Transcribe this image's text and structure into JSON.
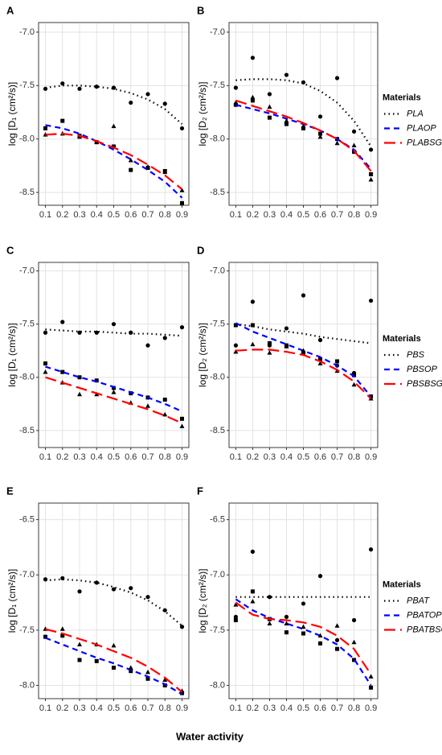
{
  "x_axis_label": "Water activity",
  "chart_data": [
    {
      "type": "scatter",
      "panel_label": "A",
      "ylabel": "log [D₁ (cm²/s)]",
      "x": [
        0.1,
        0.2,
        0.3,
        0.4,
        0.5,
        0.6,
        0.7,
        0.8,
        0.9
      ],
      "xlim": [
        0.06,
        0.94
      ],
      "xticks": [
        0.1,
        0.2,
        0.3,
        0.4,
        0.5,
        0.6,
        0.7,
        0.8,
        0.9
      ],
      "ylim": [
        -8.62,
        -6.91
      ],
      "yticks": [
        {
          "value": -7,
          "label": "-7.0"
        },
        -7.5,
        {
          "value": -8,
          "label": "-8.0"
        },
        -8.5
      ],
      "grid": true,
      "series": [
        {
          "color": "#000000",
          "marker": "circle",
          "line_style": "dotted",
          "values": [
            -7.53,
            -7.48,
            -7.53,
            -7.51,
            -7.52,
            -7.66,
            -7.58,
            -7.67,
            -7.9
          ],
          "fit": [
            -7.52,
            -7.5,
            -7.5,
            -7.51,
            -7.53,
            -7.57,
            -7.63,
            -7.72,
            -7.86
          ]
        },
        {
          "color": "#0000ff",
          "marker": "square",
          "line_style": "dashed",
          "values": [
            -7.9,
            -7.83,
            -7.97,
            -8.03,
            -8.07,
            -8.29,
            -8.27,
            -8.3,
            -8.6
          ],
          "fit": [
            -7.87,
            -7.9,
            -7.95,
            -8.02,
            -8.1,
            -8.19,
            -8.29,
            -8.4,
            -8.55
          ]
        },
        {
          "color": "#ff0000",
          "marker": "triangle",
          "line_style": "longdash",
          "values": [
            -7.96,
            -7.95,
            -7.98,
            -8.03,
            -7.88,
            -8.2,
            -8.26,
            -8.31,
            -8.48
          ],
          "fit": [
            -7.96,
            -7.95,
            -7.97,
            -8.02,
            -8.08,
            -8.15,
            -8.24,
            -8.34,
            -8.47
          ]
        }
      ]
    },
    {
      "type": "scatter",
      "panel_label": "B",
      "ylabel": "log [D₂ (cm²/s)]",
      "x": [
        0.1,
        0.2,
        0.3,
        0.4,
        0.5,
        0.6,
        0.7,
        0.8,
        0.9
      ],
      "xlim": [
        0.06,
        0.94
      ],
      "xticks": [
        0.1,
        0.2,
        0.3,
        0.4,
        0.5,
        0.6,
        0.7,
        0.8,
        0.9
      ],
      "ylim": [
        -8.62,
        -6.91
      ],
      "yticks": [
        {
          "value": -7,
          "label": "-7.0"
        },
        -7.5,
        {
          "value": -8,
          "label": "-8.0"
        },
        -8.5
      ],
      "grid": true,
      "legend_title": "Materials",
      "series": [
        {
          "name": "PLA",
          "color": "#000000",
          "marker": "circle",
          "line_style": "dotted",
          "values": [
            -7.52,
            -7.24,
            -7.58,
            -7.4,
            -7.47,
            -7.79,
            -7.43,
            -7.93,
            -8.1
          ],
          "fit": [
            -7.45,
            -7.44,
            -7.44,
            -7.45,
            -7.48,
            -7.55,
            -7.66,
            -7.83,
            -8.07
          ]
        },
        {
          "name": "PLAOP",
          "color": "#0000ff",
          "marker": "square",
          "line_style": "dashed",
          "values": [
            -7.68,
            -7.64,
            -7.8,
            -7.86,
            -7.9,
            -7.95,
            -8.0,
            -8.12,
            -8.33
          ],
          "fit": [
            -7.68,
            -7.72,
            -7.76,
            -7.81,
            -7.86,
            -7.92,
            -8.0,
            -8.1,
            -8.28
          ]
        },
        {
          "name": "PLABSG",
          "color": "#ff0000",
          "marker": "triangle",
          "line_style": "longdash",
          "values": [
            -7.66,
            -7.61,
            -7.7,
            -7.83,
            -7.88,
            -7.98,
            -8.04,
            -8.06,
            -8.38
          ],
          "fit": [
            -7.64,
            -7.69,
            -7.74,
            -7.79,
            -7.85,
            -7.92,
            -8.0,
            -8.11,
            -8.3
          ]
        }
      ]
    },
    {
      "type": "scatter",
      "panel_label": "C",
      "ylabel": "log [D₁ (cm²/s)]",
      "x": [
        0.1,
        0.2,
        0.3,
        0.4,
        0.5,
        0.6,
        0.7,
        0.8,
        0.9
      ],
      "xlim": [
        0.06,
        0.94
      ],
      "xticks": [
        0.1,
        0.2,
        0.3,
        0.4,
        0.5,
        0.6,
        0.7,
        0.8,
        0.9
      ],
      "ylim": [
        -8.66,
        -6.92
      ],
      "yticks": [
        {
          "value": -7,
          "label": "-7.0"
        },
        -7.5,
        {
          "value": -8,
          "label": "-8.0"
        },
        -8.5
      ],
      "grid": true,
      "series": [
        {
          "color": "#000000",
          "marker": "circle",
          "line_style": "dotted",
          "values": [
            -7.58,
            -7.48,
            -7.58,
            -7.58,
            -7.5,
            -7.58,
            -7.7,
            -7.63,
            -7.53
          ],
          "fit": [
            -7.55,
            -7.56,
            -7.57,
            -7.57,
            -7.58,
            -7.59,
            -7.59,
            -7.6,
            -7.61
          ]
        },
        {
          "color": "#0000ff",
          "marker": "square",
          "line_style": "dashed",
          "values": [
            -7.87,
            -7.95,
            -8.0,
            -8.03,
            -8.1,
            -8.15,
            -8.19,
            -8.21,
            -8.39
          ],
          "fit": [
            -7.9,
            -7.95,
            -8.0,
            -8.04,
            -8.09,
            -8.14,
            -8.19,
            -8.25,
            -8.32
          ]
        },
        {
          "color": "#ff0000",
          "marker": "triangle",
          "line_style": "longdash",
          "values": [
            -7.95,
            -8.05,
            -8.16,
            -8.16,
            -8.14,
            -8.24,
            -8.27,
            -8.35,
            -8.46
          ],
          "fit": [
            -8.0,
            -8.05,
            -8.1,
            -8.15,
            -8.2,
            -8.25,
            -8.3,
            -8.36,
            -8.43
          ]
        }
      ]
    },
    {
      "type": "scatter",
      "panel_label": "D",
      "ylabel": "log [D₂ (cm²/s)]",
      "x": [
        0.1,
        0.2,
        0.3,
        0.4,
        0.5,
        0.6,
        0.7,
        0.8,
        0.9
      ],
      "xlim": [
        0.06,
        0.94
      ],
      "xticks": [
        0.1,
        0.2,
        0.3,
        0.4,
        0.5,
        0.6,
        0.7,
        0.8,
        0.9
      ],
      "ylim": [
        -8.66,
        -6.92
      ],
      "yticks": [
        {
          "value": -7,
          "label": "-7.0"
        },
        -7.5,
        {
          "value": -8,
          "label": "-8.0"
        },
        -8.5
      ],
      "grid": true,
      "legend_title": "Materials",
      "series": [
        {
          "name": "PBS",
          "color": "#000000",
          "marker": "circle",
          "line_style": "dotted",
          "values": [
            -7.7,
            -7.29,
            -7.7,
            -7.54,
            -7.23,
            -7.65,
            -7.89,
            -7.96,
            -7.28
          ],
          "fit": [
            -7.5,
            -7.52,
            -7.55,
            -7.57,
            -7.59,
            -7.62,
            -7.64,
            -7.66,
            -7.68
          ]
        },
        {
          "name": "PBSOP",
          "color": "#0000ff",
          "marker": "square",
          "line_style": "dashed",
          "values": [
            -7.51,
            -7.51,
            -7.68,
            -7.7,
            -7.77,
            -7.83,
            -7.85,
            -7.98,
            -8.18
          ],
          "fit": [
            -7.49,
            -7.57,
            -7.63,
            -7.69,
            -7.75,
            -7.81,
            -7.89,
            -7.99,
            -8.18
          ]
        },
        {
          "name": "PBSBSG",
          "color": "#ff0000",
          "marker": "triangle",
          "line_style": "longdash",
          "values": [
            -7.76,
            -7.69,
            -7.77,
            -7.71,
            -7.75,
            -7.87,
            -7.94,
            -8.07,
            -8.2
          ],
          "fit": [
            -7.75,
            -7.74,
            -7.74,
            -7.76,
            -7.79,
            -7.85,
            -7.93,
            -8.04,
            -8.2
          ]
        }
      ]
    },
    {
      "type": "scatter",
      "panel_label": "E",
      "ylabel": "log [D₁ (cm²/s)]",
      "x": [
        0.1,
        0.2,
        0.3,
        0.4,
        0.5,
        0.6,
        0.7,
        0.8,
        0.9
      ],
      "xlim": [
        0.06,
        0.94
      ],
      "xticks": [
        0.1,
        0.2,
        0.3,
        0.4,
        0.5,
        0.6,
        0.7,
        0.8,
        0.9
      ],
      "ylim": [
        -8.12,
        -6.35
      ],
      "yticks": [
        -6.5,
        {
          "value": -7,
          "label": "-7.0"
        },
        -7.5,
        {
          "value": -8,
          "label": "-8.0"
        }
      ],
      "grid": true,
      "series": [
        {
          "color": "#000000",
          "marker": "circle",
          "line_style": "dotted",
          "values": [
            -7.04,
            -7.03,
            -7.15,
            -7.07,
            -7.13,
            -7.12,
            -7.2,
            -7.32,
            -7.47
          ],
          "fit": [
            -7.05,
            -7.04,
            -7.05,
            -7.07,
            -7.11,
            -7.16,
            -7.23,
            -7.33,
            -7.46
          ]
        },
        {
          "color": "#0000ff",
          "marker": "square",
          "line_style": "dashed",
          "values": [
            -7.56,
            -7.55,
            -7.77,
            -7.78,
            -7.84,
            -7.87,
            -7.94,
            -8.0,
            -8.07
          ],
          "fit": [
            -7.57,
            -7.63,
            -7.69,
            -7.75,
            -7.8,
            -7.86,
            -7.92,
            -7.99,
            -8.08
          ]
        },
        {
          "color": "#ff0000",
          "marker": "triangle",
          "line_style": "longdash",
          "values": [
            -7.49,
            -7.49,
            -7.63,
            -7.63,
            -7.64,
            -7.84,
            -7.88,
            -7.95,
            -8.05
          ],
          "fit": [
            -7.49,
            -7.53,
            -7.58,
            -7.63,
            -7.69,
            -7.75,
            -7.83,
            -7.93,
            -8.06
          ]
        }
      ]
    },
    {
      "type": "scatter",
      "panel_label": "F",
      "ylabel": "log [D₂ (cm²/s)]",
      "x": [
        0.1,
        0.2,
        0.3,
        0.4,
        0.5,
        0.6,
        0.7,
        0.8,
        0.9
      ],
      "xlim": [
        0.06,
        0.94
      ],
      "xticks": [
        0.1,
        0.2,
        0.3,
        0.4,
        0.5,
        0.6,
        0.7,
        0.8,
        0.9
      ],
      "ylim": [
        -8.12,
        -6.35
      ],
      "yticks": [
        -6.5,
        {
          "value": -7,
          "label": "-7.0"
        },
        -7.5,
        {
          "value": -8,
          "label": "-8.0"
        }
      ],
      "grid": true,
      "legend_title": "Materials",
      "series": [
        {
          "name": "PBAT",
          "color": "#000000",
          "marker": "circle",
          "line_style": "dotted",
          "values": [
            -7.38,
            -6.79,
            -7.2,
            -7.38,
            -7.26,
            -7.01,
            -7.59,
            -7.41,
            -6.77
          ],
          "fit": [
            -7.2,
            -7.2,
            -7.2,
            -7.2,
            -7.2,
            -7.2,
            -7.2,
            -7.2,
            -7.2
          ]
        },
        {
          "name": "PBATOP",
          "color": "#0000ff",
          "marker": "square",
          "line_style": "dashed",
          "values": [
            -7.41,
            -7.15,
            -7.4,
            -7.52,
            -7.53,
            -7.62,
            -7.67,
            -7.77,
            -8.02
          ],
          "fit": [
            -7.22,
            -7.32,
            -7.39,
            -7.44,
            -7.49,
            -7.55,
            -7.63,
            -7.76,
            -8.0
          ]
        },
        {
          "name": "PBATBSG",
          "color": "#ff0000",
          "marker": "triangle",
          "line_style": "longdash",
          "values": [
            -7.27,
            -7.24,
            -7.44,
            -7.44,
            -7.47,
            -7.55,
            -7.46,
            -7.61,
            -7.92
          ],
          "fit": [
            -7.25,
            -7.36,
            -7.4,
            -7.41,
            -7.43,
            -7.47,
            -7.55,
            -7.67,
            -7.9
          ]
        }
      ]
    }
  ]
}
